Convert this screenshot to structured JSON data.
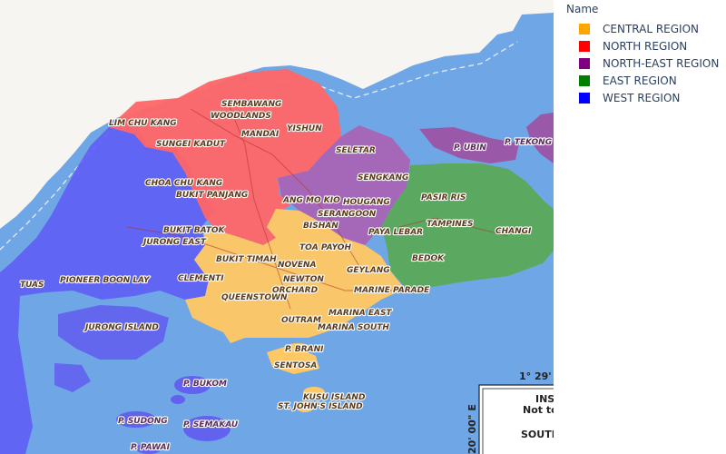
{
  "legend": {
    "title": "Name",
    "items": [
      {
        "label": "CENTRAL REGION",
        "color": "#FFA500"
      },
      {
        "label": "NORTH REGION",
        "color": "#FF0000"
      },
      {
        "label": "NORTH-EAST REGION",
        "color": "#800080"
      },
      {
        "label": "EAST REGION",
        "color": "#008000"
      },
      {
        "label": "WEST REGION",
        "color": "#0000FF"
      }
    ]
  },
  "colors": {
    "sea": "#6fa6e6",
    "land": "#f7f5f1",
    "central": "#FFA500",
    "north": "#FF0000",
    "northeast": "#800080",
    "east": "#008000",
    "west": "#0000FF"
  },
  "places": {
    "lim_chu_kang": "LIM CHU KANG",
    "sembawang": "SEMBAWANG",
    "woodlands": "WOODLANDS",
    "mandai": "MANDAI",
    "yishun": "YISHUN",
    "sungei_kadut": "SUNGEI KADUT",
    "seletar": "SELETAR",
    "p_ubin": "P. UBIN",
    "p_tekong": "P. TEKONG",
    "choa_chu_kang": "CHOA CHU KANG",
    "bukit_panjang": "BUKIT PANJANG",
    "ang_mo_kio": "ANG MO KIO",
    "sengkang": "SENGKANG",
    "hougang": "HOUGANG",
    "serangoon": "SERANGOON",
    "pasir_ris": "PASIR RIS",
    "tampines": "TAMPINES",
    "changi": "CHANGI",
    "bishan": "BISHAN",
    "bukit_batok": "BUKIT BATOK",
    "jurong_east": "JURONG EAST",
    "paya_lebar": "PAYA LEBAR",
    "toa_payoh": "TOA PAYOH",
    "bukit_timah": "BUKIT TIMAH",
    "novena": "NOVENA",
    "geylang": "GEYLANG",
    "bedok": "BEDOK",
    "pioneer_boon_lay": "PIONEER BOON LAY",
    "clementi": "CLEMENTI",
    "newton": "NEWTON",
    "orchard": "ORCHARD",
    "marine_parade": "MARINE PARADE",
    "queenstown": "QUEENSTOWN",
    "tuas": "TUAS",
    "jurong_island": "JURONG ISLAND",
    "outram": "OUTRAM",
    "marina_east": "MARINA EAST",
    "marina_south": "MARINA SOUTH",
    "p_brani": "P. BRANI",
    "sentosa": "SENTOSA",
    "p_bukom": "P. BUKOM",
    "kusu_island": "KUSU ISLAND",
    "st_johns_island": "ST. JOHN'S ISLAND",
    "p_sudong": "P. SUDONG",
    "p_semakau": "P. SEMAKAU",
    "p_pawai": "P. PAWAI"
  },
  "inset": {
    "coord_top": "1° 29'",
    "ins": "INS",
    "not_to": "Not to",
    "coord_side": "20' 00\" E",
    "south": "SOUTH"
  }
}
